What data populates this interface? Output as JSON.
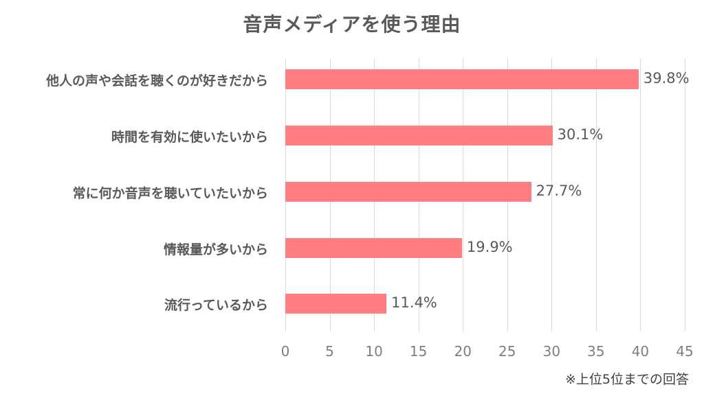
{
  "chart_data": {
    "type": "bar",
    "orientation": "horizontal",
    "title": "音声メディアを使う理由",
    "categories": [
      "他人の声や会話を聴くのが好きだから",
      "時間を有効に使いたいから",
      "常に何か音声を聴いていたいから",
      "情報量が多いから",
      "流行っているから"
    ],
    "values": [
      39.8,
      30.1,
      27.7,
      19.9,
      11.4
    ],
    "value_labels": [
      "39.8%",
      "30.1%",
      "27.7%",
      "19.9%",
      "11.4%"
    ],
    "xlabel": "",
    "ylabel": "",
    "xlim": [
      0,
      45
    ],
    "x_ticks": [
      "0",
      "5",
      "10",
      "15",
      "20",
      "25",
      "30",
      "35",
      "40",
      "45"
    ],
    "grid": true,
    "legend": null,
    "bar_color": "#ff7c80",
    "annotation": "※上位5位までの回答"
  },
  "title": "音声メディアを使う理由",
  "note": "※上位5位までの回答"
}
